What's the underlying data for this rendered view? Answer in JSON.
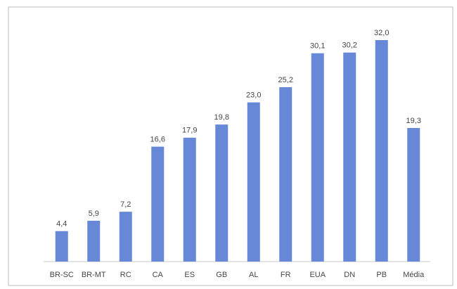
{
  "chart_data": {
    "type": "bar",
    "categories": [
      "BR-SC",
      "BR-MT",
      "RC",
      "CA",
      "ES",
      "GB",
      "AL",
      "FR",
      "EUA",
      "DN",
      "PB",
      "Média"
    ],
    "values": [
      4.4,
      5.9,
      7.2,
      16.6,
      17.9,
      19.8,
      23.0,
      25.2,
      30.1,
      30.2,
      32.0,
      19.3
    ],
    "value_labels": [
      "4,4",
      "5,9",
      "7,2",
      "16,6",
      "17,9",
      "19,8",
      "23,0",
      "25,2",
      "30,1",
      "30,2",
      "32,0",
      "19,3"
    ],
    "color": "#6688d6"
  }
}
